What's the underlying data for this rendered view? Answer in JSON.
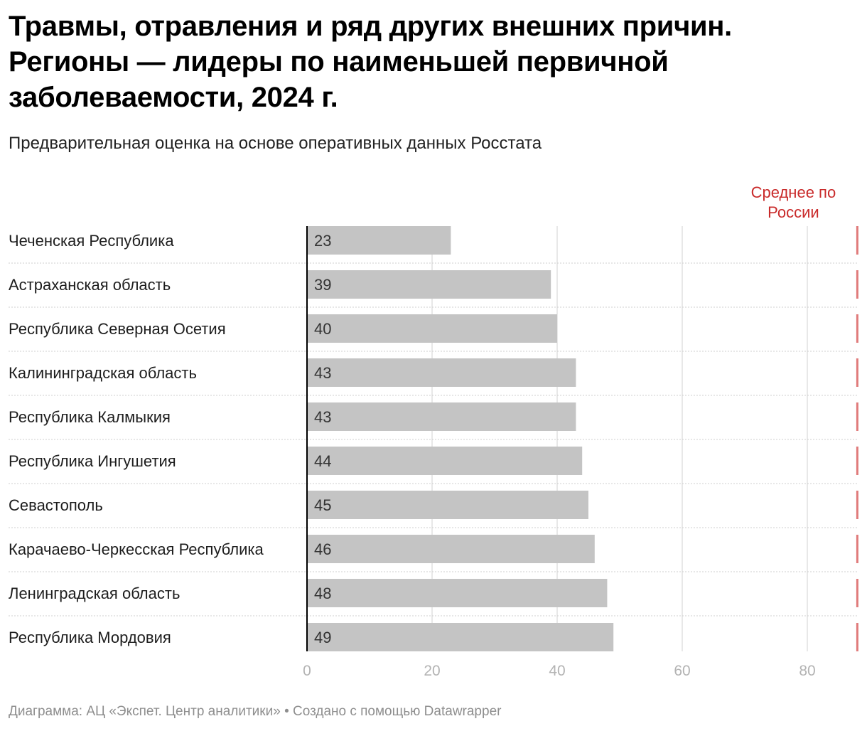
{
  "title": "Травмы, отравления и ряд других внешних причин. Регионы — лидеры по наименьшей первичной заболеваемости, 2024 г.",
  "subtitle": "Предварительная оценка на основе оперативных данных Росстата",
  "footer": "Диаграмма: АЦ «Экспет. Центр аналитики» • Создано с помощью Datawrapper",
  "colors": {
    "bar": "#c4c4c4",
    "reference": "#c92a2a",
    "grid": "#e0e0e0",
    "axis": "#000000",
    "tick": "#b3b3b3"
  },
  "chart_data": {
    "type": "bar",
    "orientation": "horizontal",
    "categories": [
      "Чеченская Республика",
      "Астраханская область",
      "Республика Северная Осетия",
      "Калининградская область",
      "Республика Калмыкия",
      "Республика Ингушетия",
      "Севастополь",
      "Карачаево-Черкесская Республика",
      "Ленинградская область",
      "Республика Мордовия"
    ],
    "values": [
      23,
      39,
      40,
      43,
      43,
      44,
      45,
      46,
      48,
      49
    ],
    "xlim": [
      0,
      90
    ],
    "xticks": [
      0,
      20,
      40,
      60,
      80
    ],
    "reference_line": {
      "value": 88,
      "label_lines": [
        "Среднее по",
        "России"
      ]
    },
    "grid": true
  }
}
